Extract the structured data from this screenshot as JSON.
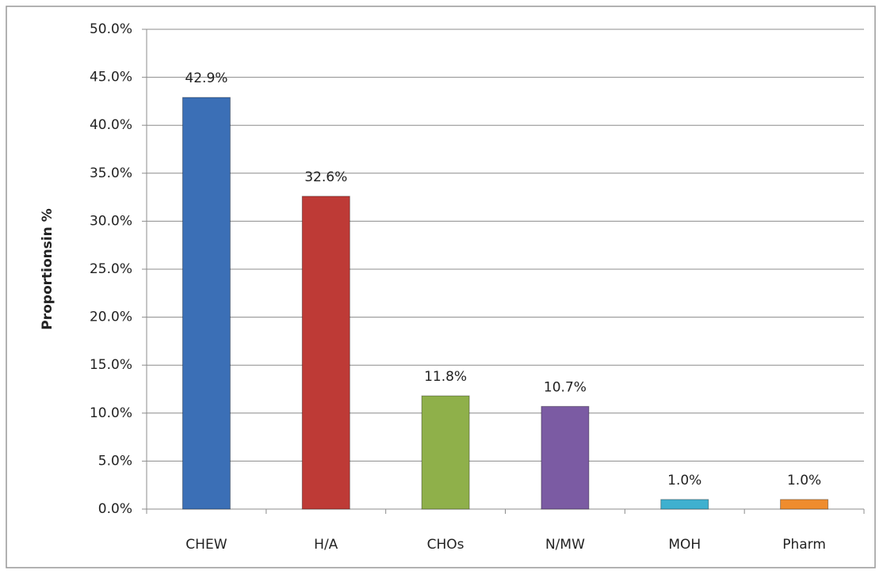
{
  "chart_data": {
    "type": "bar",
    "y_axis_label": "Proportionsin %",
    "categories": [
      "CHEW",
      "H/A",
      "CHOs",
      "N/MW",
      "MOH",
      "Pharm"
    ],
    "values": [
      42.9,
      32.6,
      11.8,
      10.7,
      1.0,
      1.0
    ],
    "value_labels": [
      "42.9%",
      "32.6%",
      "11.8%",
      "10.7%",
      "1.0%",
      "1.0%"
    ],
    "colors": [
      "#3b6fb6",
      "#be3a36",
      "#8fb04a",
      "#7b5ba3",
      "#3fb0cf",
      "#ef8c2e"
    ],
    "ylim": [
      0,
      50
    ],
    "yticks": [
      {
        "value": 0,
        "label": "0.0%"
      },
      {
        "value": 5,
        "label": "5.0%"
      },
      {
        "value": 10,
        "label": "10.0%"
      },
      {
        "value": 15,
        "label": "15.0%"
      },
      {
        "value": 20,
        "label": "20.0%"
      },
      {
        "value": 25,
        "label": "25.0%"
      },
      {
        "value": 30,
        "label": "30.0%"
      },
      {
        "value": 35,
        "label": "35.0%"
      },
      {
        "value": 40,
        "label": "40.0%"
      },
      {
        "value": 45,
        "label": "45.0%"
      },
      {
        "value": 50,
        "label": "50.0%"
      }
    ],
    "grid": true
  }
}
